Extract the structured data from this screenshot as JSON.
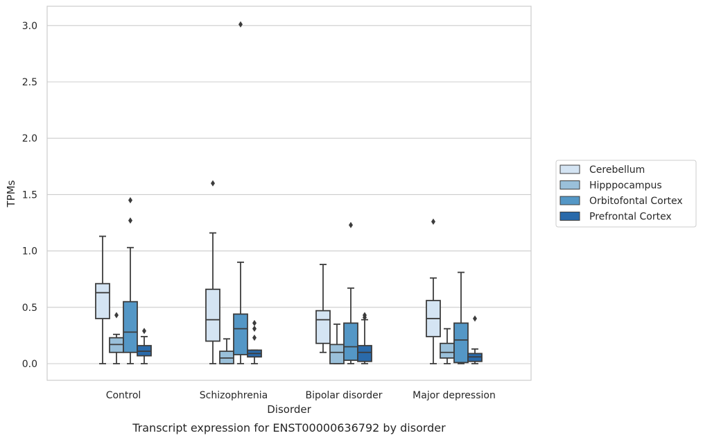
{
  "caption": "Transcript expression for ENST00000636792 by disorder",
  "chart_data": {
    "type": "box",
    "title": "",
    "xlabel": "Disorder",
    "ylabel": "TPMs",
    "ylim": [
      -0.15,
      3.17
    ],
    "yticks": [
      0.0,
      0.5,
      1.0,
      1.5,
      2.0,
      2.5,
      3.0
    ],
    "ytick_labels": [
      "0.0",
      "0.5",
      "1.0",
      "1.5",
      "2.0",
      "2.5",
      "3.0"
    ],
    "grid": "horizontal",
    "legend_placement": "right",
    "categories": [
      "Control",
      "Schizophrenia",
      "Bipolar disorder",
      "Major depression"
    ],
    "series": [
      {
        "name": "Cerebellum",
        "color": "#d4e4f3",
        "boxes": [
          {
            "min": 0.0,
            "q1": 0.4,
            "median": 0.63,
            "q3": 0.71,
            "max": 1.13,
            "outliers": []
          },
          {
            "min": 0.0,
            "q1": 0.2,
            "median": 0.39,
            "q3": 0.66,
            "max": 1.16,
            "outliers": [
              1.6
            ]
          },
          {
            "min": 0.1,
            "q1": 0.18,
            "median": 0.39,
            "q3": 0.47,
            "max": 0.88,
            "outliers": []
          },
          {
            "min": 0.0,
            "q1": 0.24,
            "median": 0.4,
            "q3": 0.56,
            "max": 0.76,
            "outliers": [
              1.26
            ]
          }
        ]
      },
      {
        "name": "Hipppocampus",
        "color": "#9ac0da",
        "boxes": [
          {
            "min": 0.0,
            "q1": 0.1,
            "median": 0.17,
            "q3": 0.23,
            "max": 0.26,
            "outliers": [
              0.43
            ]
          },
          {
            "min": 0.0,
            "q1": 0.0,
            "median": 0.05,
            "q3": 0.11,
            "max": 0.22,
            "outliers": []
          },
          {
            "min": 0.0,
            "q1": 0.0,
            "median": 0.1,
            "q3": 0.17,
            "max": 0.35,
            "outliers": []
          },
          {
            "min": 0.0,
            "q1": 0.05,
            "median": 0.1,
            "q3": 0.18,
            "max": 0.31,
            "outliers": []
          }
        ]
      },
      {
        "name": "Orbitofontal Cortex",
        "color": "#5497c6",
        "boxes": [
          {
            "min": 0.0,
            "q1": 0.1,
            "median": 0.28,
            "q3": 0.55,
            "max": 1.03,
            "outliers": [
              1.27,
              1.45
            ]
          },
          {
            "min": 0.0,
            "q1": 0.08,
            "median": 0.31,
            "q3": 0.44,
            "max": 0.9,
            "outliers": [
              3.01
            ]
          },
          {
            "min": 0.0,
            "q1": 0.03,
            "median": 0.15,
            "q3": 0.36,
            "max": 0.67,
            "outliers": [
              1.23
            ]
          },
          {
            "min": 0.0,
            "q1": 0.01,
            "median": 0.21,
            "q3": 0.36,
            "max": 0.81,
            "outliers": []
          }
        ]
      },
      {
        "name": "Prefrontal Cortex",
        "color": "#2a6aaa",
        "boxes": [
          {
            "min": 0.0,
            "q1": 0.07,
            "median": 0.11,
            "q3": 0.16,
            "max": 0.24,
            "outliers": [
              0.29
            ]
          },
          {
            "min": 0.0,
            "q1": 0.06,
            "median": 0.09,
            "q3": 0.12,
            "max": 0.12,
            "outliers": [
              0.23,
              0.31,
              0.36
            ]
          },
          {
            "min": 0.0,
            "q1": 0.02,
            "median": 0.1,
            "q3": 0.16,
            "max": 0.39,
            "outliers": [
              0.41,
              0.43
            ]
          },
          {
            "min": 0.0,
            "q1": 0.02,
            "median": 0.06,
            "q3": 0.09,
            "max": 0.13,
            "outliers": [
              0.4
            ]
          }
        ]
      }
    ]
  }
}
